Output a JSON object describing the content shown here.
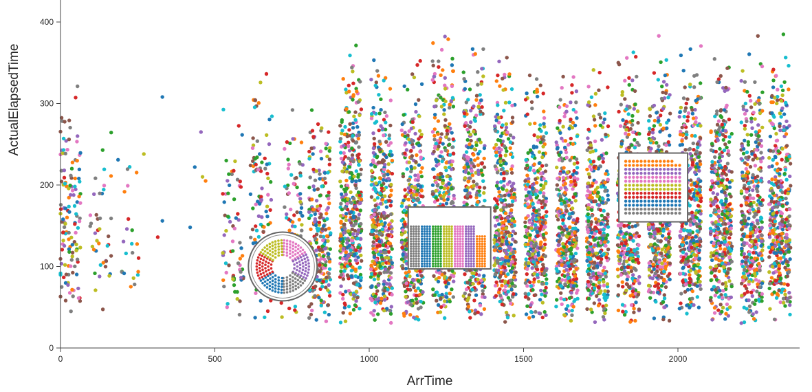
{
  "chart_data": {
    "type": "scatter",
    "title": "",
    "xlabel": "ArrTime",
    "ylabel": "ActualElapsedTime",
    "xlim": [
      0,
      2400
    ],
    "ylim": [
      0,
      420
    ],
    "x_ticks": [
      0,
      500,
      1000,
      1500,
      2000
    ],
    "y_ticks": [
      0,
      100,
      200,
      300,
      400
    ],
    "x_tick_labels": [
      "0",
      "500",
      "1000",
      "1500",
      "2000"
    ],
    "y_tick_labels": [
      "0",
      "100",
      "200",
      "300",
      "400"
    ],
    "grid": false,
    "legend": "none",
    "palette": [
      "#1f77b4",
      "#ff7f0e",
      "#2ca02c",
      "#d62728",
      "#9467bd",
      "#8c564b",
      "#e377c2",
      "#7f7f7f",
      "#bcbd22",
      "#17becf"
    ],
    "jitter_columns": [
      {
        "x": 30,
        "y_range": [
          30,
          390
        ],
        "count": 130
      },
      {
        "x": 130,
        "y_range": [
          45,
          325
        ],
        "count": 40
      },
      {
        "x": 220,
        "y_range": [
          55,
          280
        ],
        "count": 22
      },
      {
        "x": 560,
        "y_range": [
          30,
          345
        ],
        "count": 70
      },
      {
        "x": 650,
        "y_range": [
          30,
          415
        ],
        "count": 110
      },
      {
        "x": 750,
        "y_range": [
          30,
          335
        ],
        "count": 110
      },
      {
        "x": 840,
        "y_range": [
          28,
          335
        ],
        "count": 260
      },
      {
        "x": 940,
        "y_range": [
          28,
          410
        ],
        "count": 420
      },
      {
        "x": 1040,
        "y_range": [
          28,
          370
        ],
        "count": 430
      },
      {
        "x": 1140,
        "y_range": [
          28,
          375
        ],
        "count": 430
      },
      {
        "x": 1240,
        "y_range": [
          28,
          420
        ],
        "count": 420
      },
      {
        "x": 1340,
        "y_range": [
          28,
          400
        ],
        "count": 410
      },
      {
        "x": 1440,
        "y_range": [
          28,
          390
        ],
        "count": 430
      },
      {
        "x": 1540,
        "y_range": [
          28,
          370
        ],
        "count": 400
      },
      {
        "x": 1640,
        "y_range": [
          28,
          365
        ],
        "count": 410
      },
      {
        "x": 1740,
        "y_range": [
          28,
          360
        ],
        "count": 400
      },
      {
        "x": 1840,
        "y_range": [
          28,
          395
        ],
        "count": 420
      },
      {
        "x": 1940,
        "y_range": [
          28,
          420
        ],
        "count": 440
      },
      {
        "x": 2040,
        "y_range": [
          28,
          410
        ],
        "count": 430
      },
      {
        "x": 2140,
        "y_range": [
          28,
          385
        ],
        "count": 420
      },
      {
        "x": 2240,
        "y_range": [
          28,
          390
        ],
        "count": 410
      },
      {
        "x": 2330,
        "y_range": [
          28,
          415
        ],
        "count": 400
      }
    ],
    "sparse_points": [
      {
        "x": 330,
        "y": 308,
        "color": "#1f77b4"
      },
      {
        "x": 330,
        "y": 156,
        "color": "#1f77b4"
      },
      {
        "x": 315,
        "y": 136,
        "color": "#d62728"
      },
      {
        "x": 420,
        "y": 148,
        "color": "#1f77b4"
      },
      {
        "x": 435,
        "y": 222,
        "color": "#1f77b4"
      },
      {
        "x": 455,
        "y": 265,
        "color": "#9467bd"
      },
      {
        "x": 460,
        "y": 210,
        "color": "#bcbd22"
      },
      {
        "x": 470,
        "y": 205,
        "color": "#ff7f0e"
      },
      {
        "x": 240,
        "y": 78,
        "color": "#7f7f7f"
      },
      {
        "x": 270,
        "y": 238,
        "color": "#bcbd22"
      }
    ],
    "lenses": [
      {
        "kind": "pie",
        "center": [
          720,
          100
        ]
      },
      {
        "kind": "bar",
        "center": [
          1260,
          135
        ]
      },
      {
        "kind": "grid",
        "center": [
          1920,
          197
        ]
      }
    ]
  }
}
